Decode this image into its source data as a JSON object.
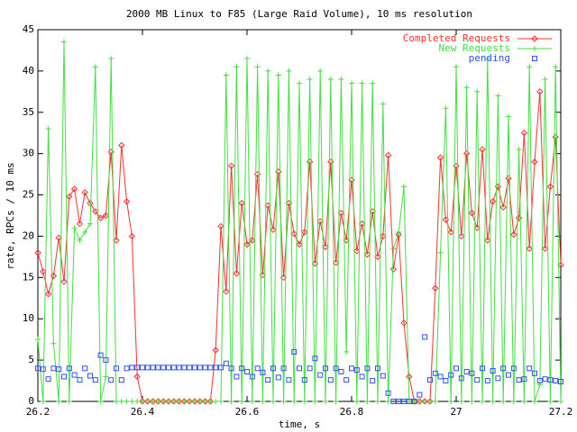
{
  "chart_data": {
    "type": "line",
    "title": "2000 MB Linux to F85 (Large Raid Volume), 10 ms resolution",
    "xlabel": "time, s",
    "ylabel": "rate, RPCs / 10 ms",
    "x": [
      26.2,
      26.21,
      26.22,
      26.23,
      26.24,
      26.25,
      26.26,
      26.27,
      26.28,
      26.29,
      26.3,
      26.31,
      26.32,
      26.33,
      26.34,
      26.35,
      26.36,
      26.37,
      26.38,
      26.39,
      26.4,
      26.41,
      26.42,
      26.43,
      26.44,
      26.45,
      26.46,
      26.47,
      26.48,
      26.49,
      26.5,
      26.51,
      26.52,
      26.53,
      26.54,
      26.55,
      26.56,
      26.57,
      26.58,
      26.59,
      26.6,
      26.61,
      26.62,
      26.63,
      26.64,
      26.65,
      26.66,
      26.67,
      26.68,
      26.69,
      26.7,
      26.71,
      26.72,
      26.73,
      26.74,
      26.75,
      26.76,
      26.77,
      26.78,
      26.79,
      26.8,
      26.81,
      26.82,
      26.83,
      26.84,
      26.85,
      26.86,
      26.87,
      26.88,
      26.89,
      26.9,
      26.91,
      26.92,
      26.93,
      26.94,
      26.95,
      26.96,
      26.97,
      26.98,
      26.99,
      27,
      27.01,
      27.02,
      27.03,
      27.04,
      27.05,
      27.06,
      27.07,
      27.08,
      27.09,
      27.1,
      27.11,
      27.12,
      27.13,
      27.14,
      27.15,
      27.16,
      27.17,
      27.18,
      27.19,
      27.2
    ],
    "series": [
      {
        "name": "Completed Requests",
        "color": "#ff3030",
        "style": "linespoints",
        "marker": "diamond",
        "values": [
          18,
          15.7,
          13,
          15.2,
          19.8,
          14.5,
          24.8,
          25.7,
          21.5,
          25.3,
          24,
          23,
          22.2,
          22.5,
          30.2,
          19.5,
          31,
          24.2,
          20,
          3,
          0,
          0,
          0,
          0,
          0,
          0,
          0,
          0,
          0,
          0,
          0,
          0,
          0,
          0,
          6.2,
          21.2,
          13.3,
          28.5,
          15.5,
          24,
          19,
          19.5,
          27.5,
          15.3,
          23.7,
          20.8,
          27.8,
          15,
          24,
          20.3,
          19,
          20.5,
          29,
          16.7,
          21.8,
          18.7,
          29,
          16.8,
          22.8,
          19.5,
          26.8,
          18.2,
          21.5,
          17.8,
          23,
          17.5,
          20,
          29.8,
          16,
          20.2,
          9.5,
          3,
          0,
          0,
          0,
          0,
          13.7,
          29.5,
          22,
          20.5,
          28.5,
          20,
          30,
          22.8,
          21,
          30.5,
          19.5,
          24.2,
          26,
          23.5,
          27,
          20.2,
          22.2,
          32.5,
          18.5,
          29,
          37.5,
          18.5,
          26,
          32,
          16.5
        ]
      },
      {
        "name": "New Requests",
        "color": "#40e040",
        "style": "linespoints",
        "marker": "plus",
        "values": [
          7.5,
          0,
          33,
          7,
          0,
          43.5,
          0,
          21,
          19.5,
          20.5,
          21.5,
          40.5,
          0,
          3,
          41.5,
          0,
          0,
          0,
          0,
          0,
          0,
          0,
          0,
          0,
          0,
          0,
          0,
          0,
          0,
          0,
          0,
          0,
          0,
          0,
          0,
          0,
          39.5,
          0,
          40.5,
          0,
          41.5,
          0,
          40.5,
          0,
          40,
          0,
          39.5,
          0,
          40,
          0,
          38.5,
          0,
          39,
          0,
          40,
          0,
          39,
          0,
          39,
          6,
          38.5,
          0,
          38.5,
          0,
          38.5,
          0,
          36,
          0,
          18.5,
          20.5,
          26,
          0,
          0,
          0,
          0,
          0,
          0,
          18,
          35.5,
          0,
          40.5,
          0,
          38,
          0,
          37.5,
          0,
          41.5,
          0,
          37,
          0,
          34.5,
          0,
          30.5,
          0,
          40.5,
          0,
          2,
          39,
          0,
          40.5,
          0
        ]
      },
      {
        "name": "pending",
        "color": "#3050ff",
        "style": "points",
        "marker": "square",
        "values": [
          4,
          3.9,
          2.7,
          4,
          3.9,
          3,
          4,
          3.2,
          2.6,
          4,
          3.1,
          2.6,
          5.6,
          5,
          2.6,
          4,
          2.6,
          4,
          4.1,
          4.1,
          4.1,
          4.1,
          4.1,
          4.1,
          4.1,
          4.1,
          4.1,
          4.1,
          4.1,
          4.1,
          4.1,
          4.1,
          4.1,
          4.1,
          4.1,
          4.1,
          4.6,
          4,
          3,
          4,
          3.6,
          3,
          4,
          3.5,
          2.6,
          4,
          2.9,
          4,
          2.6,
          6,
          4,
          2.6,
          4,
          5.2,
          3.2,
          4,
          2.6,
          4,
          3.6,
          2.6,
          4,
          3.8,
          3,
          4,
          2.5,
          4,
          3.1,
          1,
          0,
          0,
          0,
          0,
          0,
          0.8,
          7.8,
          2.6,
          3.4,
          3,
          2.5,
          3.2,
          4,
          2.8,
          3.6,
          3.4,
          2.6,
          4,
          2.5,
          3.7,
          2.8,
          4,
          3.2,
          4,
          2.6,
          2.7,
          4,
          3.4,
          2.5,
          2.7,
          2.6,
          2.5,
          2.4
        ]
      }
    ],
    "xlim": [
      26.2,
      27.2
    ],
    "xticks": [
      26.2,
      26.4,
      26.6,
      26.8,
      27,
      27.2
    ],
    "ylim": [
      0,
      45
    ],
    "yticks": [
      0,
      5,
      10,
      15,
      20,
      25,
      30,
      35,
      40,
      45
    ],
    "legend": "top-right"
  }
}
